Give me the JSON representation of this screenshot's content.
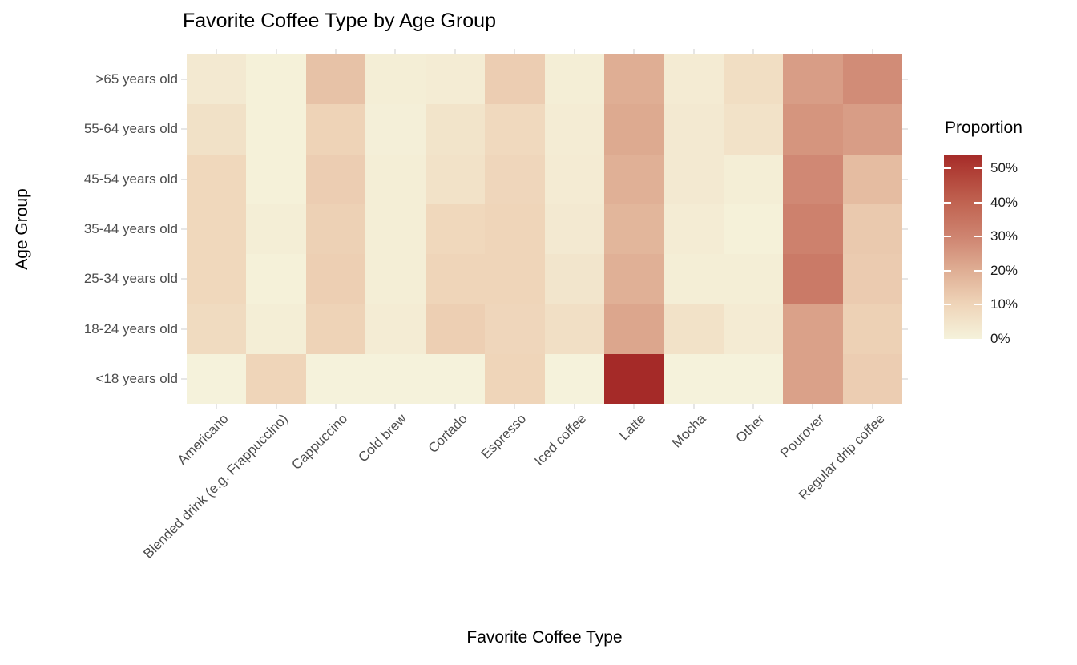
{
  "chart_data": {
    "type": "heatmap",
    "title": "Favorite Coffee Type by Age Group",
    "xlabel": "Favorite Coffee Type",
    "ylabel": "Age Group",
    "unit": "%",
    "categories": [
      "Americano",
      "Blended drink (e.g. Frappuccino)",
      "Cappuccino",
      "Cold brew",
      "Cortado",
      "Espresso",
      "Iced coffee",
      "Latte",
      "Mocha",
      "Other",
      "Pourover",
      "Regular drip coffee"
    ],
    "rows": [
      {
        "label": ">65 years old",
        "values": [
          3,
          0.5,
          15,
          1.5,
          2,
          12,
          1.5,
          20,
          2.5,
          7,
          24,
          28
        ]
      },
      {
        "label": "55-64 years old",
        "values": [
          6,
          0.5,
          10.5,
          1,
          5,
          8.5,
          2,
          21,
          3,
          5.5,
          26,
          24
        ]
      },
      {
        "label": "45-54 years old",
        "values": [
          9,
          0.5,
          12,
          1.5,
          5.5,
          9.5,
          2.5,
          19.5,
          3,
          1.5,
          29,
          16.5
        ]
      },
      {
        "label": "35-44 years old",
        "values": [
          9,
          1.5,
          11,
          1.5,
          9,
          10,
          3,
          18,
          2,
          0.5,
          31,
          13
        ]
      },
      {
        "label": "25-34 years old",
        "values": [
          9,
          0.5,
          11.5,
          1.5,
          10,
          10,
          4.5,
          19.5,
          1.5,
          1.5,
          33,
          12.5
        ]
      },
      {
        "label": "18-24 years old",
        "values": [
          8,
          1.5,
          10.5,
          2,
          11.5,
          9.5,
          6.5,
          22,
          5.5,
          2.5,
          23,
          11
        ]
      },
      {
        "label": "<18 years old",
        "values": [
          0,
          10,
          0,
          0,
          0,
          10,
          0,
          54,
          0,
          0,
          23,
          12
        ]
      }
    ],
    "legend": {
      "title": "Proportion",
      "ticks": [
        "50%",
        "40%",
        "30%",
        "20%",
        "10%",
        "0%"
      ],
      "tick_values": [
        50,
        40,
        30,
        20,
        10,
        0
      ],
      "max": 54
    },
    "color_scale": {
      "stops": [
        [
          0,
          "#F5F2DB"
        ],
        [
          10,
          "#EFD5B9"
        ],
        [
          20,
          "#DFAE94"
        ],
        [
          30,
          "#CE8470"
        ],
        [
          40,
          "#C06351"
        ],
        [
          50,
          "#AE3B33"
        ],
        [
          54,
          "#A52A28"
        ]
      ]
    },
    "layout": {
      "grid": "stubs at category centers",
      "legend_position": "right"
    }
  }
}
